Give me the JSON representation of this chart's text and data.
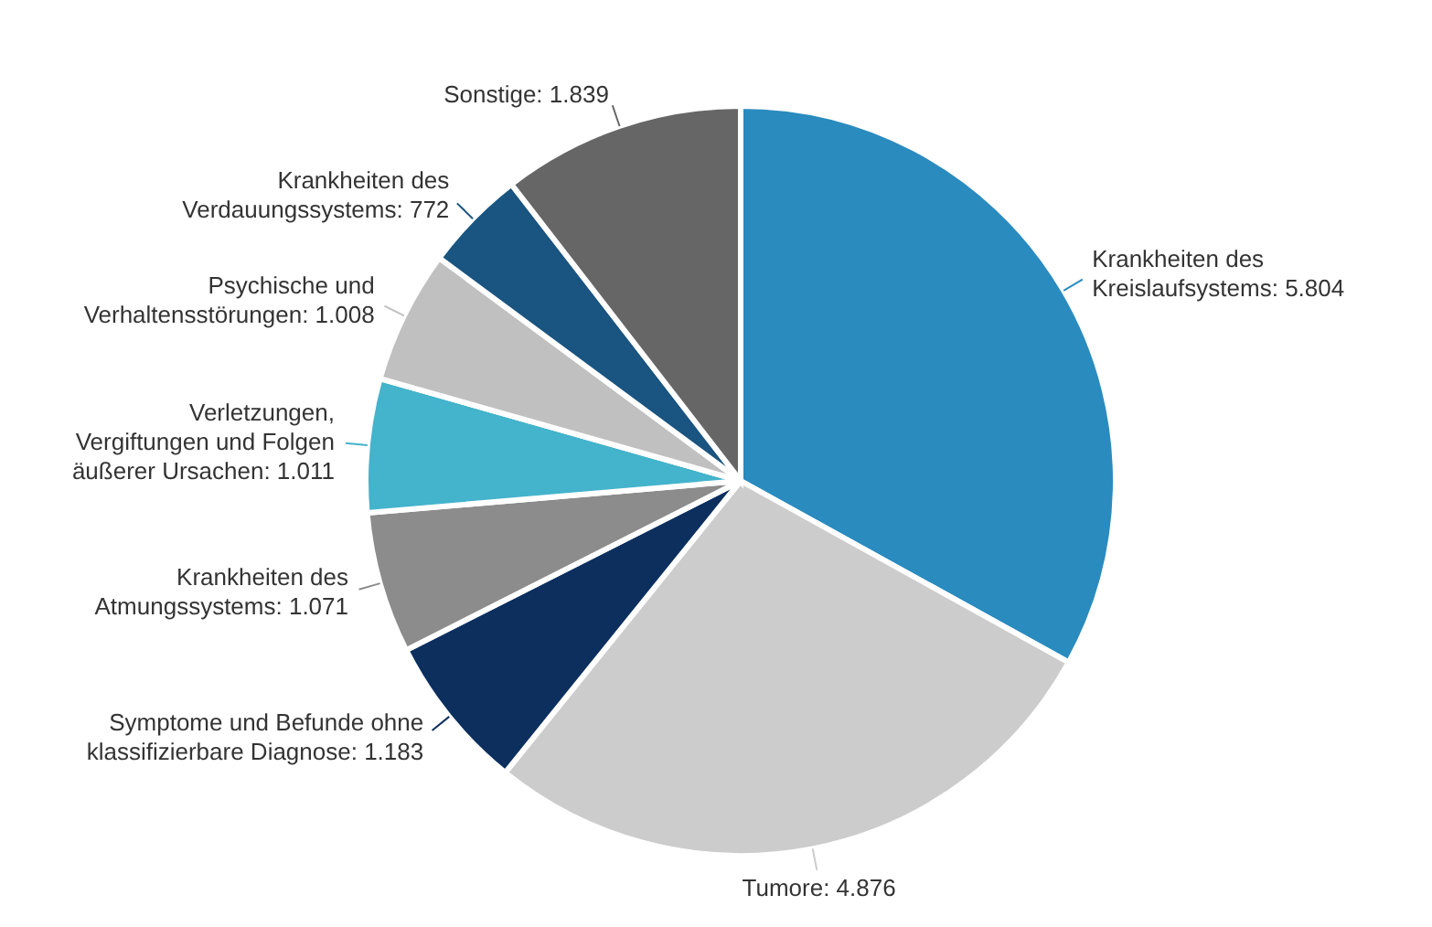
{
  "chart_data": {
    "type": "pie",
    "categories": [
      "Krankheiten des Kreislaufsystems",
      "Tumore",
      "Symptome und Befunde ohne klassifizierbare Diagnose",
      "Krankheiten des Atmungssystems",
      "Verletzungen, Vergiftungen und Folgen äußerer Ursachen",
      "Psychische und Verhaltensstörungen",
      "Krankheiten des Verdauungssystems",
      "Sonstige"
    ],
    "values": [
      5804,
      4876,
      1183,
      1071,
      1011,
      1008,
      772,
      1839
    ],
    "value_labels": [
      "5.804",
      "4.876",
      "1.183",
      "1.071",
      "1.011",
      "1.008",
      "772",
      "1.839"
    ],
    "colors": [
      "#2a8bbf",
      "#cccccc",
      "#0c2f5e",
      "#8c8c8c",
      "#44b3cc",
      "#c0c0c0",
      "#1a5480",
      "#666666"
    ]
  }
}
